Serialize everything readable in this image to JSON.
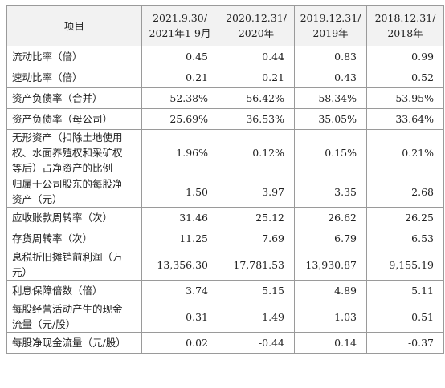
{
  "table": {
    "headers": [
      [
        "项目"
      ],
      [
        "2021.9.30/",
        "2021年1-9月"
      ],
      [
        "2020.12.31/",
        "2020年"
      ],
      [
        "2019.12.31/",
        "2019年"
      ],
      [
        "2018.12.31/",
        "2018年"
      ]
    ],
    "rows": [
      {
        "label": [
          "流动比率（倍）"
        ],
        "values": [
          "0.45",
          "0.44",
          "0.83",
          "0.99"
        ]
      },
      {
        "label": [
          "速动比率（倍）"
        ],
        "values": [
          "0.21",
          "0.21",
          "0.43",
          "0.52"
        ]
      },
      {
        "label": [
          "资产负债率（合并）"
        ],
        "values": [
          "52.38%",
          "56.42%",
          "58.34%",
          "53.95%"
        ]
      },
      {
        "label": [
          "资产负债率（母公司）"
        ],
        "values": [
          "25.69%",
          "36.53%",
          "35.05%",
          "33.64%"
        ]
      },
      {
        "label": [
          "无形资产（扣除土地使用",
          "权、水面养殖权和采矿权",
          "等后）占净资产的比例"
        ],
        "values": [
          "1.96%",
          "0.12%",
          "0.15%",
          "0.21%"
        ]
      },
      {
        "label": [
          "归属于公司股东的每股净",
          "资产（元）"
        ],
        "values": [
          "1.50",
          "3.97",
          "3.35",
          "2.68"
        ]
      },
      {
        "label": [
          "应收账款周转率（次）"
        ],
        "values": [
          "31.46",
          "25.12",
          "26.62",
          "26.25"
        ]
      },
      {
        "label": [
          "存货周转率（次）"
        ],
        "values": [
          "11.25",
          "7.69",
          "6.79",
          "6.53"
        ]
      },
      {
        "label": [
          "息税折旧摊销前利润（万",
          "元）"
        ],
        "values": [
          "13,356.30",
          "17,781.53",
          "13,930.87",
          "9,155.19"
        ]
      },
      {
        "label": [
          "利息保障倍数（倍）"
        ],
        "values": [
          "3.74",
          "5.15",
          "4.89",
          "5.11"
        ]
      },
      {
        "label": [
          "每股经营活动产生的现金",
          "流量（元/股）"
        ],
        "values": [
          "0.31",
          "1.49",
          "1.03",
          "0.51"
        ]
      },
      {
        "label": [
          "每股净现金流量（元/股）"
        ],
        "values": [
          "0.02",
          "-0.44",
          "0.14",
          "-0.37"
        ]
      }
    ]
  }
}
